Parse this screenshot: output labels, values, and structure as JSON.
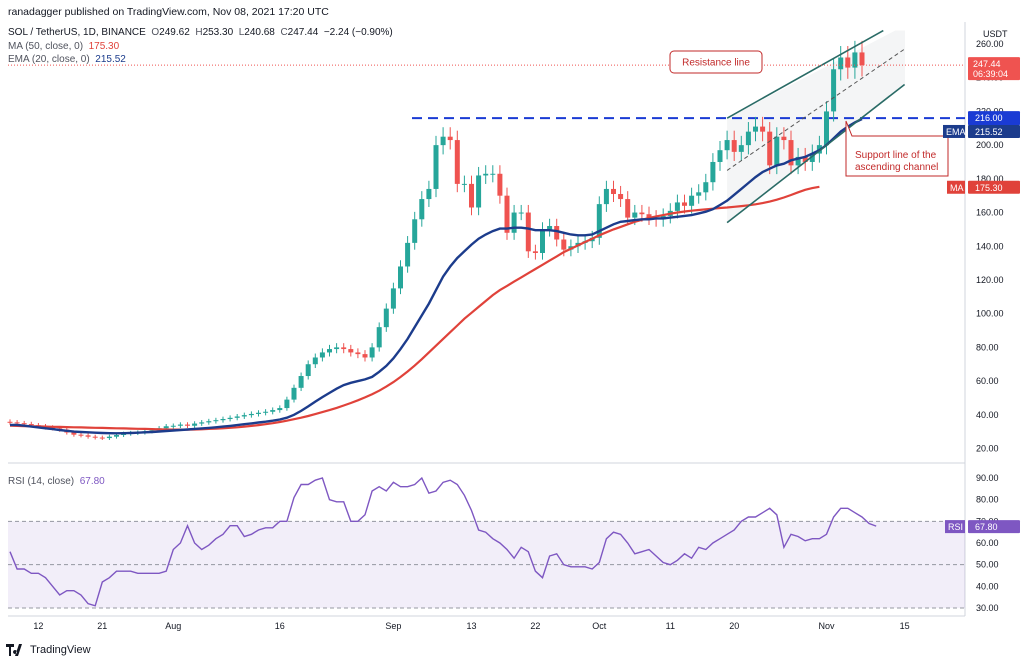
{
  "header": {
    "published": "ranadagger published on TradingView.com, Nov 08, 2021 17:20 UTC",
    "symbol": "SOL / TetherUS, 1D, BINANCE",
    "ohlc": {
      "o_label": "O",
      "o": "249.62",
      "h_label": "H",
      "h": "253.30",
      "l_label": "L",
      "l": "240.68",
      "c_label": "C",
      "c": "247.44",
      "chg": "−2.24 (−0.90%)"
    },
    "ma_label": "MA (50, close, 0)",
    "ma_value": "175.30",
    "ema_label": "EMA (20, close, 0)",
    "ema_value": "215.52"
  },
  "rsi_header": {
    "label": "RSI (14, close)",
    "value": "67.80"
  },
  "currency": "USDT",
  "footer": {
    "brand": "TradingView"
  },
  "colors": {
    "up": "#26a69a",
    "down": "#ef5350",
    "ma": "#e0423a",
    "ema": "#1c3c8c",
    "rsi": "#7e57c2",
    "resistance": "#1a3bd4",
    "channel": "#2a6b66"
  },
  "tags": {
    "last": "247.44",
    "countdown": "06:39:04",
    "resistance": "216.00",
    "ema_tag": "EMA",
    "ema_value": "215.52",
    "ma_tag": "MA",
    "ma_value": "175.30",
    "rsi_tag": "RSI",
    "rsi_value": "67.80"
  },
  "annotations": {
    "resistance": "Resistance line",
    "support_1": "Support line of the",
    "support_2": "ascending channel"
  },
  "chart_data": [
    {
      "type": "candlestick",
      "y_ticks": [
        20,
        40,
        60,
        80,
        100,
        120,
        140,
        160,
        180,
        200,
        220,
        240,
        260
      ],
      "y_tick_labels": [
        "20.00",
        "40.00",
        "60.00",
        "80.00",
        "100.00",
        "120.00",
        "140.00",
        "160.00",
        "180.00",
        "200.00",
        "220.00",
        "240.00",
        "260.00"
      ],
      "x_tick_labels": [
        "12",
        "21",
        "Aug",
        "16",
        "Sep",
        "13",
        "22",
        "Oct",
        "11",
        "20",
        "Nov",
        "15"
      ],
      "x_tick_index": [
        4,
        13,
        23,
        38,
        54,
        65,
        74,
        83,
        93,
        102,
        115,
        126
      ],
      "resistance_level": 216,
      "close": [
        35.5,
        35,
        34.5,
        33.8,
        33.2,
        32.5,
        32,
        31.2,
        29.5,
        28.2,
        27.8,
        27,
        26.5,
        26.2,
        27,
        28,
        28.8,
        29.2,
        29.5,
        30.2,
        30.8,
        32,
        33.2,
        33.5,
        34.2,
        33.5,
        34.8,
        35.5,
        36.2,
        36.8,
        37.5,
        38.2,
        39,
        39.8,
        40.5,
        41.2,
        41.8,
        42.8,
        44,
        49,
        56,
        63,
        70,
        74,
        77,
        79,
        80,
        79,
        77,
        76,
        74,
        80,
        92,
        103,
        115,
        128,
        142,
        156,
        168,
        174,
        200,
        205,
        203,
        177,
        177,
        163,
        182,
        183,
        183,
        170,
        148,
        160,
        160,
        137,
        136,
        150,
        152,
        144,
        138,
        140,
        142,
        143,
        145,
        165,
        174,
        171,
        168,
        157,
        160,
        159,
        157,
        156,
        158,
        161,
        166,
        164,
        170,
        172,
        178,
        190,
        197,
        203,
        196,
        200,
        208,
        211,
        208,
        188,
        205,
        203,
        188,
        193,
        190,
        195,
        200,
        220,
        245,
        252,
        246,
        255,
        247.44
      ],
      "ema20": [
        34,
        34,
        33.5,
        33,
        32.5,
        32,
        31.5,
        31,
        30.5,
        30,
        29.8,
        29.6,
        29.4,
        29.2,
        29.1,
        29,
        29.1,
        29.2,
        29.4,
        29.6,
        29.8,
        30.1,
        30.4,
        30.7,
        31,
        31.3,
        31.6,
        31.9,
        32.2,
        32.6,
        33,
        33.4,
        33.9,
        34.4,
        34.9,
        35.4,
        35.9,
        36.5,
        37.2,
        38.3,
        40,
        42.3,
        45,
        47.8,
        50.5,
        53,
        55.5,
        57.6,
        59,
        60,
        61,
        62.5,
        65.5,
        69,
        73.5,
        79,
        85,
        92,
        99,
        106,
        114,
        122,
        128,
        133,
        137,
        141,
        144.5,
        147,
        149,
        150.5,
        150.5,
        151,
        151,
        150.5,
        149.5,
        149.5,
        149.5,
        149,
        148,
        147,
        146.5,
        146.5,
        147,
        149,
        151,
        153,
        154.5,
        155,
        155.5,
        156,
        156,
        156.5,
        156.5,
        157,
        157.5,
        158,
        158.5,
        159.5,
        160.5,
        162,
        164.5,
        167,
        170.5,
        174,
        177.5,
        181,
        184,
        186,
        188,
        189,
        191,
        192,
        193,
        195,
        197,
        200,
        204,
        208,
        211,
        213.5,
        215.52
      ],
      "ma50": [
        33.5,
        33.4,
        33.3,
        33.2,
        33.1,
        33,
        32.9,
        32.8,
        32.7,
        32.6,
        32.5,
        32.4,
        32.3,
        32.2,
        32.1,
        32,
        31.9,
        31.8,
        31.7,
        31.6,
        31.5,
        31.4,
        31.3,
        31.2,
        31.2,
        31.2,
        31.3,
        31.4,
        31.6,
        31.8,
        32,
        32.3,
        32.6,
        33,
        33.4,
        33.9,
        34.4,
        35,
        35.7,
        36.5,
        37.4,
        38.3,
        39.3,
        40.4,
        41.6,
        42.8,
        44.1,
        45.5,
        47,
        48.6,
        50.3,
        52.2,
        54.3,
        56.7,
        59.4,
        62.4,
        65.7,
        69.2,
        73,
        77,
        81,
        85,
        89,
        93,
        97,
        100.5,
        104,
        107.5,
        111,
        114,
        116.5,
        119,
        121.5,
        124,
        126.5,
        129,
        131.5,
        134,
        136.5,
        138.5,
        140.5,
        142.5,
        144.5,
        146.5,
        148.3,
        150,
        151.5,
        153,
        154.5,
        155.7,
        156.8,
        157.7,
        158.5,
        159.3,
        160,
        160.6,
        161.1,
        161.5,
        161.9,
        162.3,
        162.7,
        163,
        163.4,
        163.8,
        164.3,
        164.9,
        165.6,
        166.5,
        167.6,
        168.9,
        170.4,
        172,
        173.5,
        174.5,
        175.3
      ],
      "channel_upper": [
        [
          101,
          216
        ],
        [
          123,
          268
        ]
      ],
      "channel_lower": [
        [
          101,
          154
        ],
        [
          126,
          236
        ]
      ],
      "channel_mid": [
        [
          101,
          185
        ],
        [
          126,
          257
        ]
      ]
    },
    {
      "type": "line",
      "name": "RSI (14, close)",
      "y_ticks": [
        30,
        40,
        50,
        60,
        70,
        80,
        90
      ],
      "y_tick_labels": [
        "30.00",
        "40.00",
        "50.00",
        "60.00",
        "70.00",
        "80.00",
        "90.00"
      ],
      "band": [
        30,
        70
      ],
      "values": [
        56,
        48,
        48,
        46,
        46,
        44,
        40,
        36,
        38,
        38,
        36,
        32,
        31,
        42,
        44,
        47,
        47,
        47,
        46,
        46,
        46,
        46,
        47,
        57,
        60,
        68,
        60,
        57,
        59,
        62,
        64,
        68,
        68,
        63,
        64,
        66,
        67,
        67,
        70,
        70,
        81,
        87,
        87,
        89,
        90,
        80,
        79,
        79,
        70,
        70,
        73,
        84,
        86,
        84,
        88,
        86,
        86,
        87,
        90,
        83,
        84,
        88,
        89,
        87,
        82,
        75,
        66,
        65,
        62,
        60,
        57,
        53,
        58,
        56,
        47,
        44,
        54,
        55,
        50,
        49,
        49,
        49,
        48,
        51,
        62,
        65,
        64,
        60,
        55,
        56,
        57,
        54,
        51,
        50,
        52,
        55,
        53,
        58,
        57,
        60,
        62,
        64,
        66,
        70,
        72,
        72,
        74,
        76,
        73,
        58,
        64,
        63,
        61,
        62,
        62,
        64,
        72,
        76,
        76,
        74,
        72,
        69,
        67.8
      ]
    }
  ]
}
